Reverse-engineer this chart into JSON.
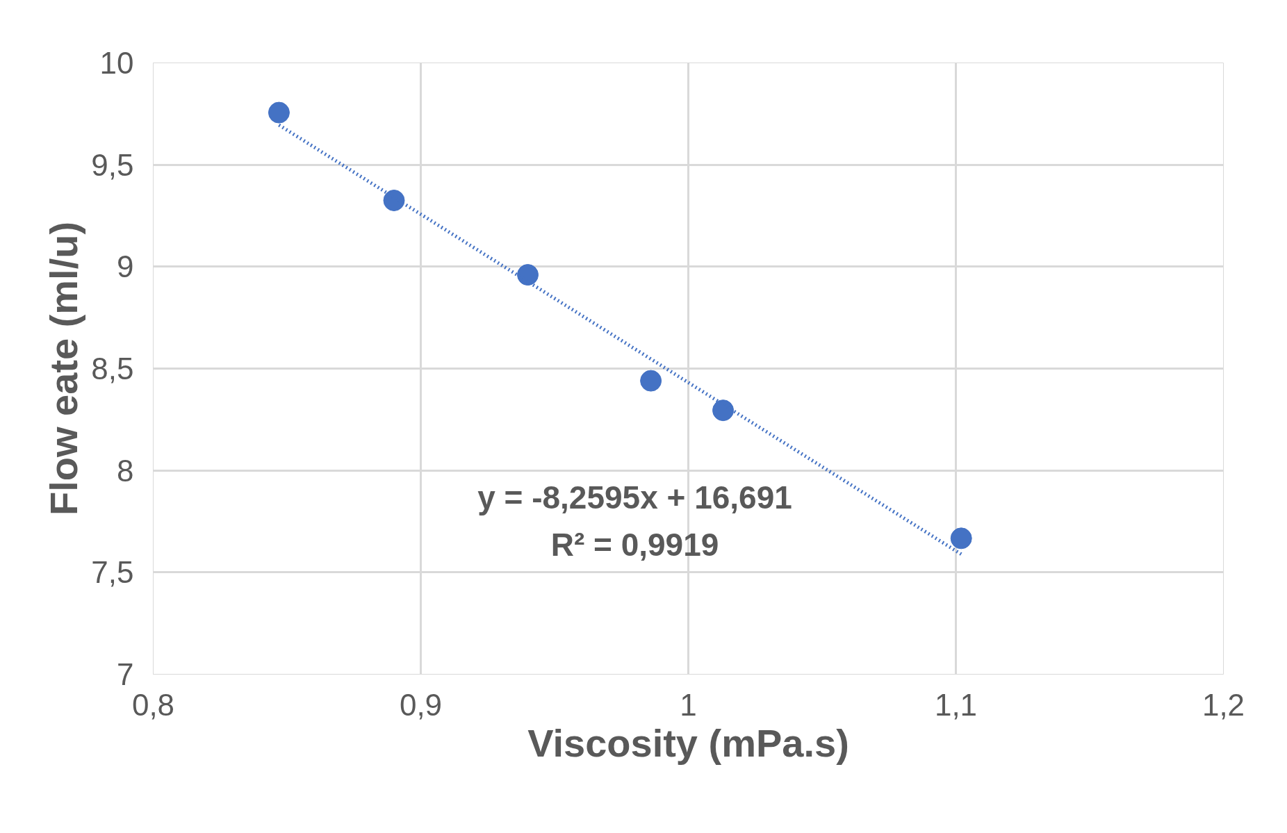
{
  "chart_data": {
    "type": "scatter",
    "xlabel": "Viscosity (mPa.s)",
    "ylabel": "Flow eate (ml/u)",
    "xlim": [
      0.8,
      1.2
    ],
    "ylim": [
      7,
      10
    ],
    "xticks": [
      {
        "value": 0.8,
        "label": "0,8"
      },
      {
        "value": 0.9,
        "label": "0,9"
      },
      1,
      {
        "value": 1.1,
        "label": "1,1"
      },
      {
        "value": 1.2,
        "label": "1,2"
      }
    ],
    "yticks": [
      7,
      {
        "value": 7.5,
        "label": "7,5"
      },
      8,
      {
        "value": 8.5,
        "label": "8,5"
      },
      9,
      {
        "value": 9.5,
        "label": "9,5"
      },
      10
    ],
    "grid": true,
    "marker": "circle",
    "series": [
      {
        "color": "#4472c4",
        "x": [
          0.847,
          0.89,
          0.94,
          0.986,
          1.013,
          1.102
        ],
        "values": [
          9.756,
          9.325,
          8.96,
          8.44,
          8.295,
          7.667
        ]
      },
      {
        "type": "line",
        "color": "#4472c4",
        "line_style": "dotted",
        "marker": "none",
        "x": [
          0.847,
          1.102
        ],
        "values": [
          9.695,
          7.589
        ]
      }
    ],
    "annotations": [
      "y = -8,2595x + 16,691",
      "R² = 0,9919"
    ]
  }
}
